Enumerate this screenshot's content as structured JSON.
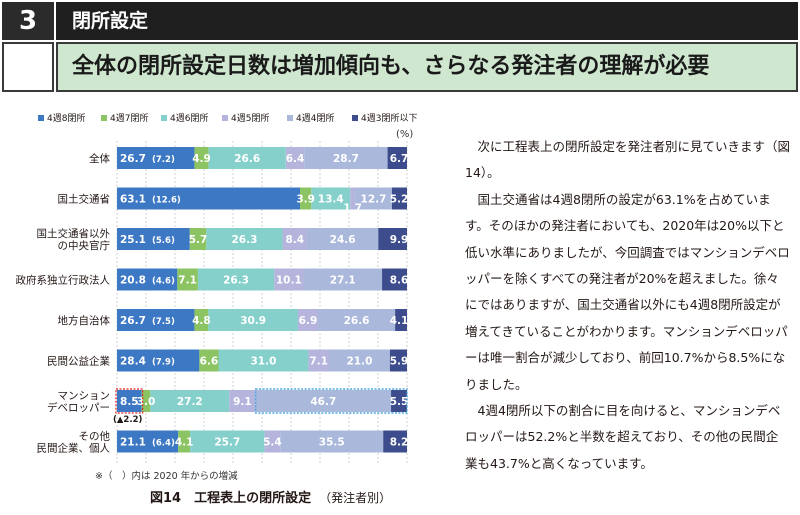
{
  "header": {
    "section_number": "3",
    "section_title": "閉所設定",
    "headline": "全体の閉所設定日数は増加傾向も、さらなる発注者の理解が必要"
  },
  "chart_data": {
    "type": "bar",
    "orientation": "horizontal-stacked-100",
    "unit_label": "(%)",
    "series_names": [
      "4週8閉所",
      "4週7閉所",
      "4週6閉所",
      "4週5閉所",
      "4週4閉所",
      "4週3閉所以下"
    ],
    "colors": [
      "#3c78c4",
      "#8cc464",
      "#86d0cc",
      "#b4b4dc",
      "#aab8dc",
      "#3c4c8c"
    ],
    "rows": [
      {
        "category": "全体",
        "values": [
          26.7,
          4.9,
          26.6,
          6.4,
          28.7,
          6.7
        ],
        "labels": [
          "26.7",
          "4.9",
          "26.6",
          "6.4",
          "28.7",
          "6.7"
        ],
        "change": "(7.2)"
      },
      {
        "category": "国土交通省",
        "values": [
          63.1,
          3.9,
          13.4,
          1.7,
          12.7,
          5.2
        ],
        "labels": [
          "63.1",
          "3.9",
          "13.4",
          "1.7",
          "12.7",
          "5.2"
        ],
        "change": "(12.6)"
      },
      {
        "category": "国土交通省以外の中央官庁",
        "values": [
          25.1,
          5.7,
          26.3,
          8.4,
          24.6,
          9.9
        ],
        "labels": [
          "25.1",
          "5.7",
          "26.3",
          "8.4",
          "24.6",
          "9.9"
        ],
        "change": "(5.6)"
      },
      {
        "category": "政府系独立行政法人",
        "values": [
          20.8,
          7.1,
          26.3,
          10.1,
          27.1,
          8.6
        ],
        "labels": [
          "20.8",
          "7.1",
          "26.3",
          "10.1",
          "27.1",
          "8.6"
        ],
        "change": "(4.6)"
      },
      {
        "category": "地方自治体",
        "values": [
          26.7,
          4.8,
          30.9,
          6.9,
          26.6,
          4.1
        ],
        "labels": [
          "26.7",
          "4.8",
          "30.9",
          "6.9",
          "26.6",
          "4.1"
        ],
        "change": "(7.5)"
      },
      {
        "category": "民間公益企業",
        "values": [
          28.4,
          6.6,
          31.0,
          7.1,
          21.0,
          5.9
        ],
        "labels": [
          "28.4",
          "6.6",
          "31.0",
          "7.1",
          "21.0",
          "5.9"
        ],
        "change": "(7.9)"
      },
      {
        "category": "マンションデベロッパー",
        "values": [
          8.5,
          3.0,
          27.2,
          9.1,
          46.7,
          5.5
        ],
        "labels": [
          "8.5",
          "3.0",
          "27.2",
          "9.1",
          "46.7",
          "5.5"
        ],
        "change": "(▲2.2)",
        "highlight": true
      },
      {
        "category": "その他民間企業、個人",
        "values": [
          21.1,
          4.1,
          25.7,
          5.4,
          35.5,
          8.2
        ],
        "labels": [
          "21.1",
          "4.1",
          "25.7",
          "5.4",
          "35.5",
          "8.2"
        ],
        "change": "(6.4)"
      }
    ],
    "category_lines": [
      [
        "全体"
      ],
      [
        "国土交通省"
      ],
      [
        "国土交通省以外",
        "の中央官庁"
      ],
      [
        "政府系独立行政法人"
      ],
      [
        "地方自治体"
      ],
      [
        "民間公益企業"
      ],
      [
        "マンション",
        "デベロッパー"
      ],
      [
        "その他",
        "民間企業、個人"
      ]
    ],
    "xlim": [
      0,
      100
    ],
    "grid": true,
    "legend_position": "top"
  },
  "figure": {
    "note": "※（　）内は 2020 年からの増減",
    "caption": "図14　工程表上の閉所設定",
    "caption_sub": "（発注者別）"
  },
  "body": {
    "paragraphs": [
      "次に工程表上の閉所設定を発注者別に見ていきます（図14）。",
      "国土交通省は4週8閉所の設定が63.1%を占めています。そのほかの発注者においても、2020年は20%以下と低い水準にありましたが、今回調査ではマンションデベロッパーを除くすべての発注者が20%を超えました。徐々にではありますが、国土交通省以外にも4週8閉所設定が増えてきていることがわかります。マンションデベロッパーは唯一割合が減少しており、前回10.7%から8.5%になりました。",
      "4週4閉所以下の割合に目を向けると、マンションデベロッパーは52.2%と半数を超えており、その他の民間企業も43.7%と高くなっています。"
    ]
  }
}
